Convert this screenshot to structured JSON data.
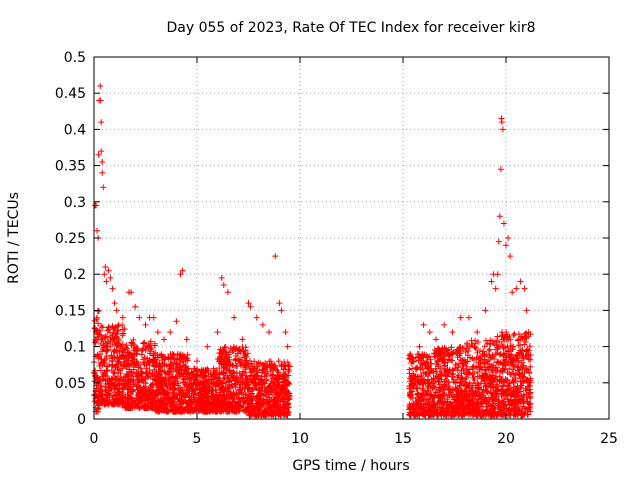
{
  "chart_data": {
    "type": "scatter",
    "title": "Day 055 of 2023, Rate Of TEC Index for receiver kir8",
    "xlabel": "GPS time / hours",
    "ylabel": "ROTI / TECUs",
    "xlim": [
      0,
      25
    ],
    "ylim": [
      0,
      0.5
    ],
    "xticks": [
      0,
      5,
      10,
      15,
      20,
      25
    ],
    "yticks": [
      0,
      0.05,
      0.1,
      0.15,
      0.2,
      0.25,
      0.3,
      0.35,
      0.4,
      0.45,
      0.5
    ],
    "grid": true,
    "marker": "+",
    "color": "#ff0000",
    "series": [
      {
        "name": "",
        "points": [
          [
            0.05,
            0.295
          ],
          [
            0.1,
            0.295
          ],
          [
            0.15,
            0.26
          ],
          [
            0.2,
            0.25
          ],
          [
            0.22,
            0.365
          ],
          [
            0.25,
            0.44
          ],
          [
            0.3,
            0.46
          ],
          [
            0.32,
            0.44
          ],
          [
            0.35,
            0.41
          ],
          [
            0.35,
            0.37
          ],
          [
            0.4,
            0.355
          ],
          [
            0.4,
            0.34
          ],
          [
            0.45,
            0.32
          ],
          [
            0.5,
            0.2
          ],
          [
            0.55,
            0.21
          ],
          [
            0.6,
            0.19
          ],
          [
            0.7,
            0.205
          ],
          [
            0.8,
            0.195
          ],
          [
            0.9,
            0.18
          ],
          [
            1.0,
            0.16
          ],
          [
            1.1,
            0.15
          ],
          [
            1.2,
            0.13
          ],
          [
            1.4,
            0.14
          ],
          [
            1.7,
            0.175
          ],
          [
            1.8,
            0.175
          ],
          [
            2.0,
            0.155
          ],
          [
            2.2,
            0.14
          ],
          [
            2.5,
            0.13
          ],
          [
            2.7,
            0.14
          ],
          [
            2.9,
            0.14
          ],
          [
            3.1,
            0.12
          ],
          [
            3.4,
            0.11
          ],
          [
            3.7,
            0.12
          ],
          [
            4.0,
            0.135
          ],
          [
            4.2,
            0.2
          ],
          [
            4.3,
            0.205
          ],
          [
            4.5,
            0.11
          ],
          [
            5.0,
            0.08
          ],
          [
            5.5,
            0.1
          ],
          [
            6.0,
            0.12
          ],
          [
            6.2,
            0.195
          ],
          [
            6.3,
            0.185
          ],
          [
            6.5,
            0.175
          ],
          [
            6.8,
            0.14
          ],
          [
            7.2,
            0.11
          ],
          [
            7.5,
            0.16
          ],
          [
            7.6,
            0.155
          ],
          [
            7.9,
            0.14
          ],
          [
            8.2,
            0.13
          ],
          [
            8.5,
            0.12
          ],
          [
            8.8,
            0.225
          ],
          [
            9.0,
            0.16
          ],
          [
            9.1,
            0.15
          ],
          [
            9.3,
            0.12
          ],
          [
            9.4,
            0.1
          ],
          [
            15.5,
            0.08
          ],
          [
            15.8,
            0.1
          ],
          [
            16.0,
            0.13
          ],
          [
            16.3,
            0.12
          ],
          [
            16.6,
            0.11
          ],
          [
            17.0,
            0.13
          ],
          [
            17.4,
            0.12
          ],
          [
            17.8,
            0.14
          ],
          [
            18.2,
            0.14
          ],
          [
            18.6,
            0.12
          ],
          [
            19.0,
            0.15
          ],
          [
            19.3,
            0.19
          ],
          [
            19.4,
            0.2
          ],
          [
            19.5,
            0.18
          ],
          [
            19.6,
            0.2
          ],
          [
            19.65,
            0.245
          ],
          [
            19.7,
            0.28
          ],
          [
            19.75,
            0.345
          ],
          [
            19.78,
            0.415
          ],
          [
            19.8,
            0.41
          ],
          [
            19.85,
            0.4
          ],
          [
            19.9,
            0.27
          ],
          [
            20.0,
            0.24
          ],
          [
            20.1,
            0.25
          ],
          [
            20.2,
            0.225
          ],
          [
            20.3,
            0.175
          ],
          [
            20.5,
            0.18
          ],
          [
            20.7,
            0.19
          ],
          [
            20.9,
            0.18
          ],
          [
            21.0,
            0.15
          ],
          [
            21.1,
            0.12
          ]
        ]
      }
    ],
    "dense_bands": [
      {
        "x": [
          0.0,
          0.3
        ],
        "y": [
          0.01,
          0.15
        ]
      },
      {
        "x": [
          0.3,
          1.5
        ],
        "y": [
          0.02,
          0.13
        ]
      },
      {
        "x": [
          1.5,
          3.0
        ],
        "y": [
          0.015,
          0.11
        ]
      },
      {
        "x": [
          3.0,
          4.6
        ],
        "y": [
          0.01,
          0.09
        ]
      },
      {
        "x": [
          4.6,
          6.0
        ],
        "y": [
          0.01,
          0.07
        ]
      },
      {
        "x": [
          6.0,
          7.5
        ],
        "y": [
          0.01,
          0.1
        ]
      },
      {
        "x": [
          7.5,
          9.5
        ],
        "y": [
          0.005,
          0.08
        ]
      },
      {
        "x": [
          15.3,
          16.5
        ],
        "y": [
          0.005,
          0.09
        ]
      },
      {
        "x": [
          16.5,
          18.0
        ],
        "y": [
          0.005,
          0.1
        ]
      },
      {
        "x": [
          18.0,
          19.5
        ],
        "y": [
          0.005,
          0.11
        ]
      },
      {
        "x": [
          19.5,
          21.2
        ],
        "y": [
          0.005,
          0.12
        ]
      }
    ]
  }
}
